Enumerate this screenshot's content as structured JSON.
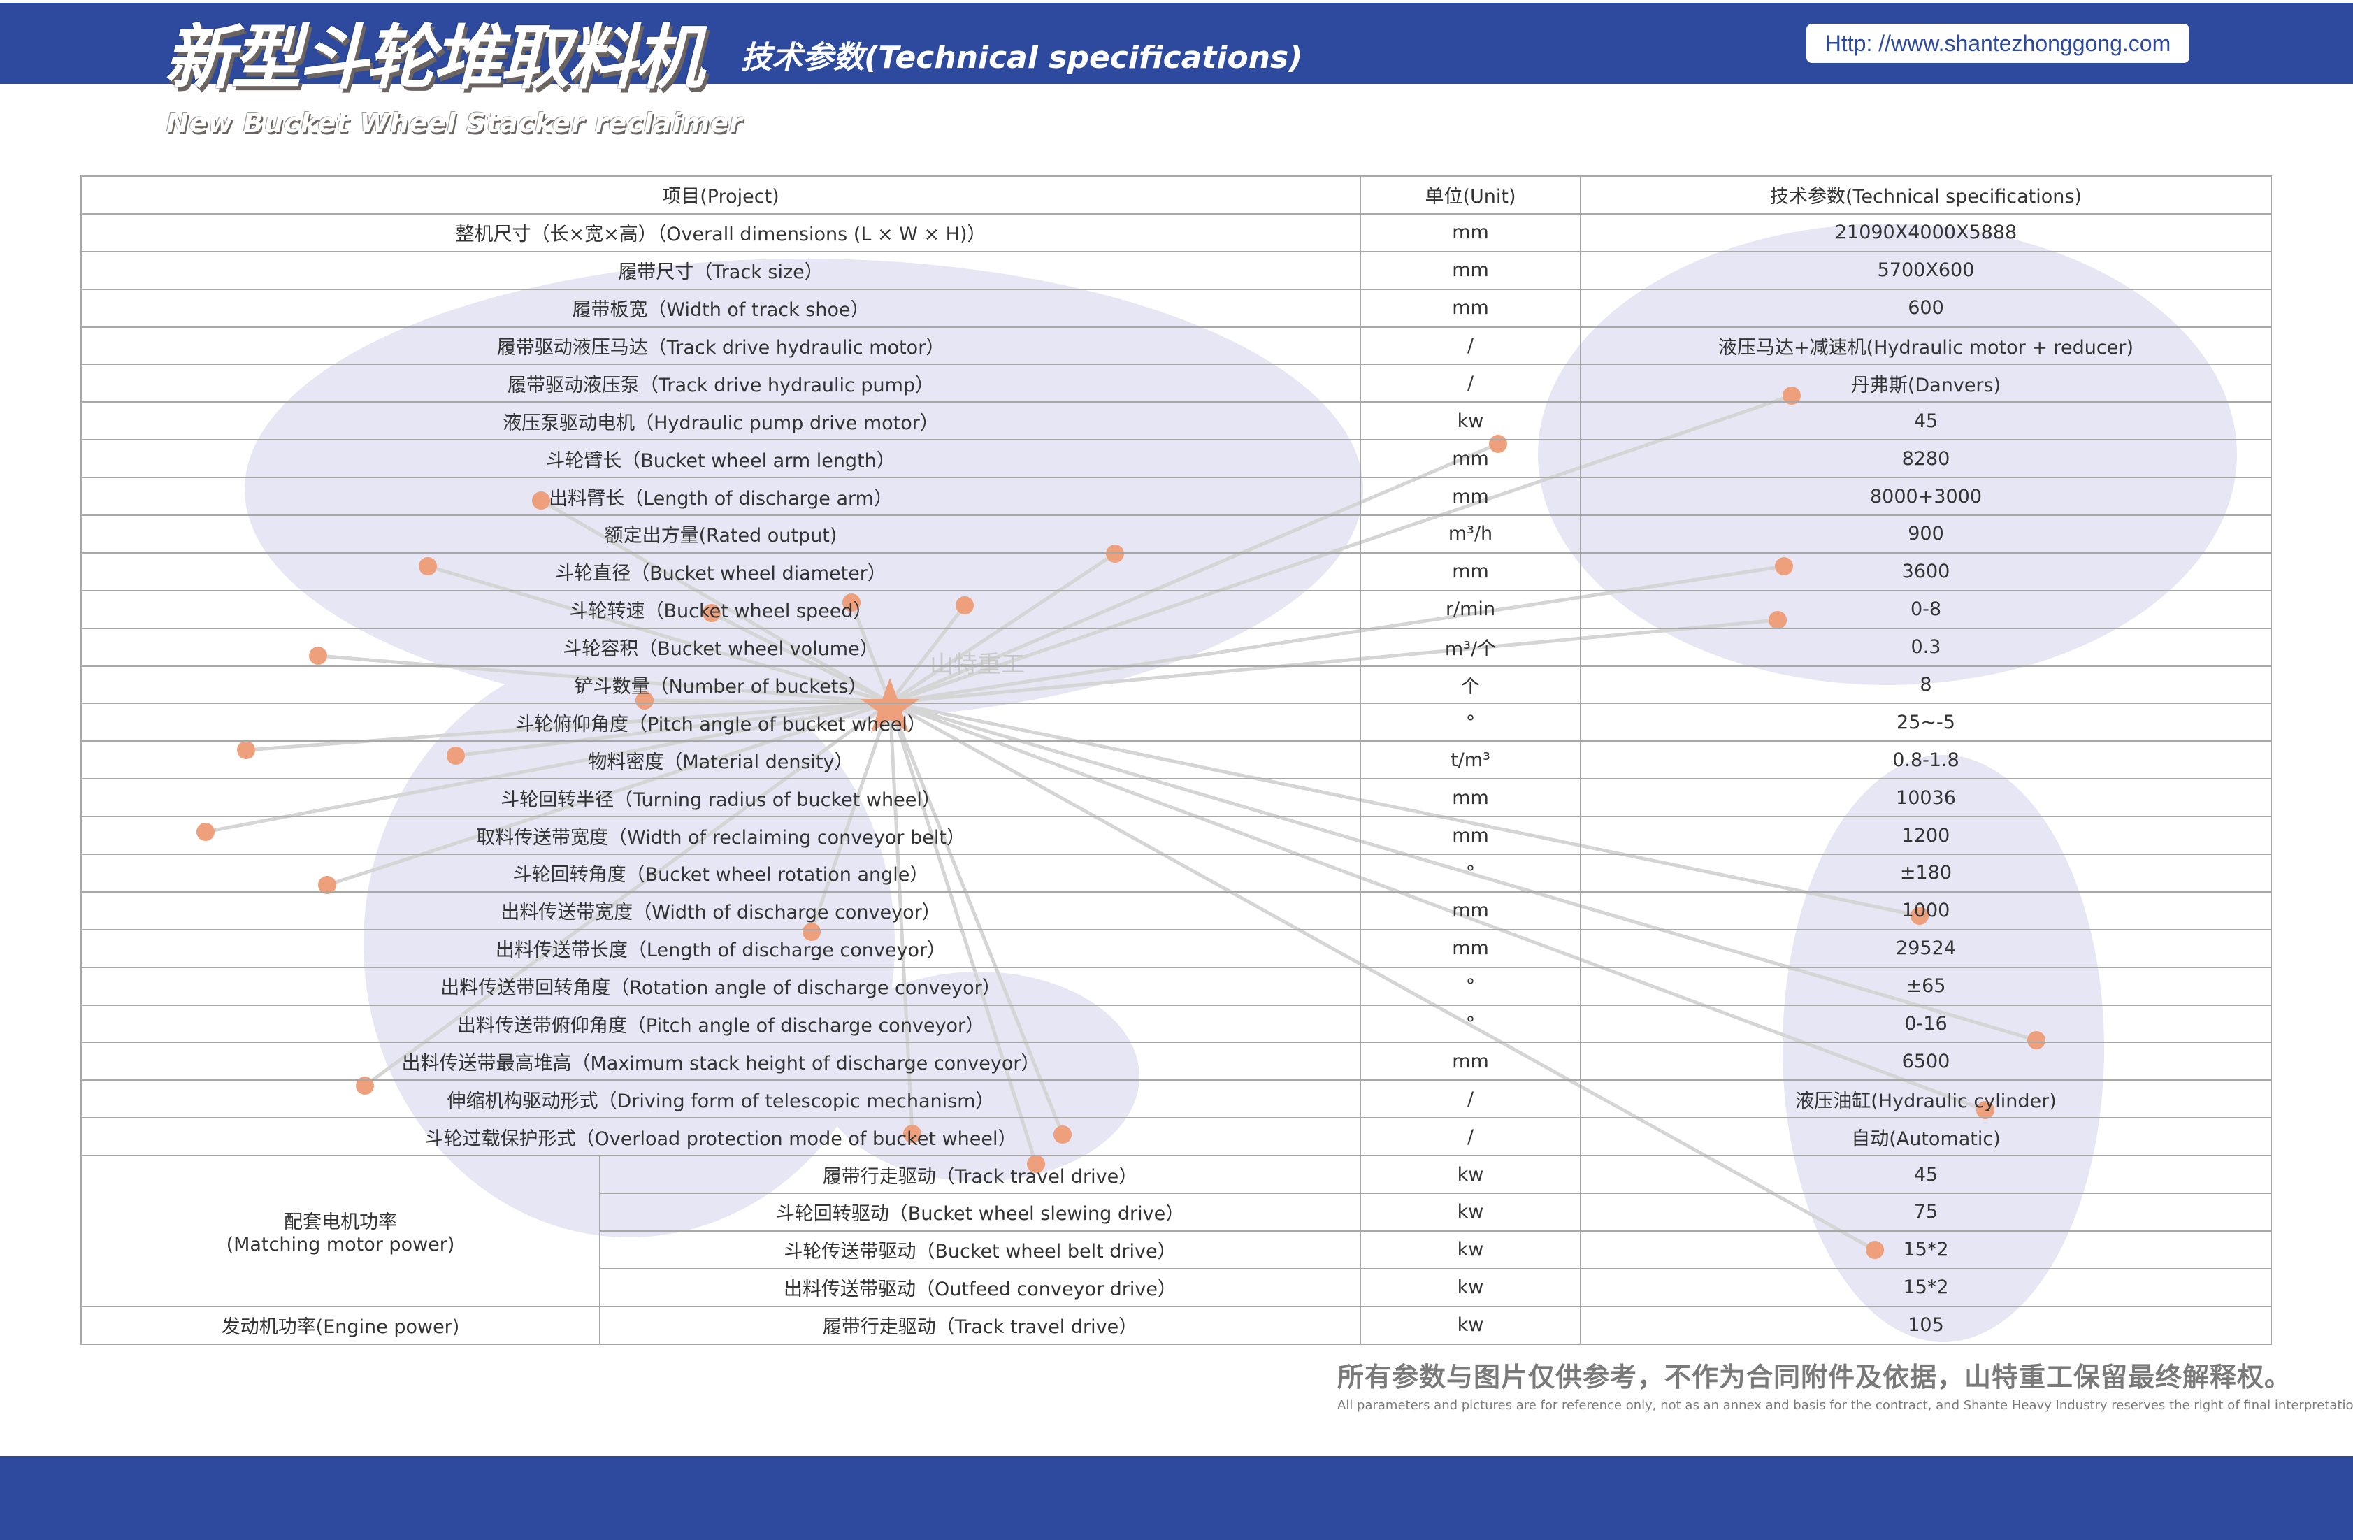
{
  "header": {
    "title_cn": "新型斗轮堆取料机",
    "title_en": "New Bucket Wheel Stacker reclaimer",
    "subtitle": "技术参数(Technical specifications)",
    "url": "Http: //www.shantezhonggong.com",
    "watermark": "山特重工",
    "brand_color": "#2d4a9e",
    "accent_color": "#eea07d"
  },
  "table": {
    "headers": [
      "项目(Project)",
      "单位(Unit)",
      "技术参数(Technical specifications)"
    ],
    "rows": [
      {
        "item": "整机尺寸（长×宽×高）（Overall dimensions (L × W × H)）",
        "unit": "mm",
        "value": "21090X4000X5888"
      },
      {
        "item": "履带尺寸（Track size）",
        "unit": "mm",
        "value": "5700X600"
      },
      {
        "item": "履带板宽（Width of track shoe）",
        "unit": "mm",
        "value": "600"
      },
      {
        "item": "履带驱动液压马达（Track drive hydraulic motor）",
        "unit": "/",
        "value": "液压马达+减速机(Hydraulic motor + reducer)"
      },
      {
        "item": "履带驱动液压泵（Track drive hydraulic pump）",
        "unit": "/",
        "value": "丹弗斯(Danvers)"
      },
      {
        "item": "液压泵驱动电机（Hydraulic pump drive motor）",
        "unit": "kw",
        "value": "45"
      },
      {
        "item": "斗轮臂长（Bucket wheel arm length）",
        "unit": "mm",
        "value": "8280"
      },
      {
        "item": "出料臂长（Length of discharge arm）",
        "unit": "mm",
        "value": "8000+3000"
      },
      {
        "item": "额定出方量(Rated output)",
        "unit": "m³/h",
        "value": "900"
      },
      {
        "item": "斗轮直径（Bucket wheel diameter）",
        "unit": "mm",
        "value": "3600"
      },
      {
        "item": "斗轮转速（Bucket wheel speed）",
        "unit": "r/min",
        "value": "0-8"
      },
      {
        "item": "斗轮容积（Bucket wheel volume）",
        "unit": "m³/个",
        "value": "0.3"
      },
      {
        "item": "铲斗数量（Number of buckets）",
        "unit": "个",
        "value": "8"
      },
      {
        "item": "斗轮俯仰角度（Pitch angle of bucket wheel）",
        "unit": "°",
        "value": "25~-5"
      },
      {
        "item": "物料密度（Material density）",
        "unit": "t/m³",
        "value": "0.8-1.8"
      },
      {
        "item": "斗轮回转半径（Turning radius of bucket wheel）",
        "unit": "mm",
        "value": "10036"
      },
      {
        "item": "取料传送带宽度（Width of reclaiming conveyor belt）",
        "unit": "mm",
        "value": "1200"
      },
      {
        "item": "斗轮回转角度（Bucket wheel rotation angle）",
        "unit": "°",
        "value": "±180"
      },
      {
        "item": "出料传送带宽度（Width of discharge conveyor）",
        "unit": "mm",
        "value": "1000"
      },
      {
        "item": "出料传送带长度（Length of discharge conveyor）",
        "unit": "mm",
        "value": "29524"
      },
      {
        "item": "出料传送带回转角度（Rotation angle of discharge conveyor）",
        "unit": "°",
        "value": "±65"
      },
      {
        "item": "出料传送带俯仰角度（Pitch angle of discharge conveyor）",
        "unit": "°",
        "value": "0-16"
      },
      {
        "item": "出料传送带最高堆高（Maximum stack height of discharge conveyor）",
        "unit": "mm",
        "value": "6500"
      },
      {
        "item": "伸缩机构驱动形式（Driving form of telescopic mechanism）",
        "unit": "/",
        "value": "液压油缸(Hydraulic cylinder)"
      },
      {
        "item": "斗轮过载保护形式（Overload protection mode of bucket wheel）",
        "unit": "/",
        "value": "自动(Automatic)"
      }
    ],
    "motor_group": {
      "label_cn": "配套电机功率",
      "label_en": "(Matching motor power)",
      "rows": [
        {
          "item": "履带行走驱动（Track travel drive）",
          "unit": "kw",
          "value": "45"
        },
        {
          "item": "斗轮回转驱动（Bucket wheel slewing drive）",
          "unit": "kw",
          "value": "75"
        },
        {
          "item": "斗轮传送带驱动（Bucket wheel belt drive）",
          "unit": "kw",
          "value": "15*2"
        },
        {
          "item": "出料传送带驱动（Outfeed conveyor drive）",
          "unit": "kw",
          "value": "15*2"
        }
      ]
    },
    "engine": {
      "label": "发动机功率(Engine power)",
      "item": "履带行走驱动（Track travel drive）",
      "unit": "kw",
      "value": "105"
    }
  },
  "footer": {
    "disclaimer_cn": "所有参数与图片仅供参考，不作为合同附件及依据，山特重工保留最终解释权。",
    "disclaimer_en": "All parameters and pictures are for reference only, not as an annex and basis for the contract, and Shante Heavy Industry reserves the right of final interpretation."
  }
}
